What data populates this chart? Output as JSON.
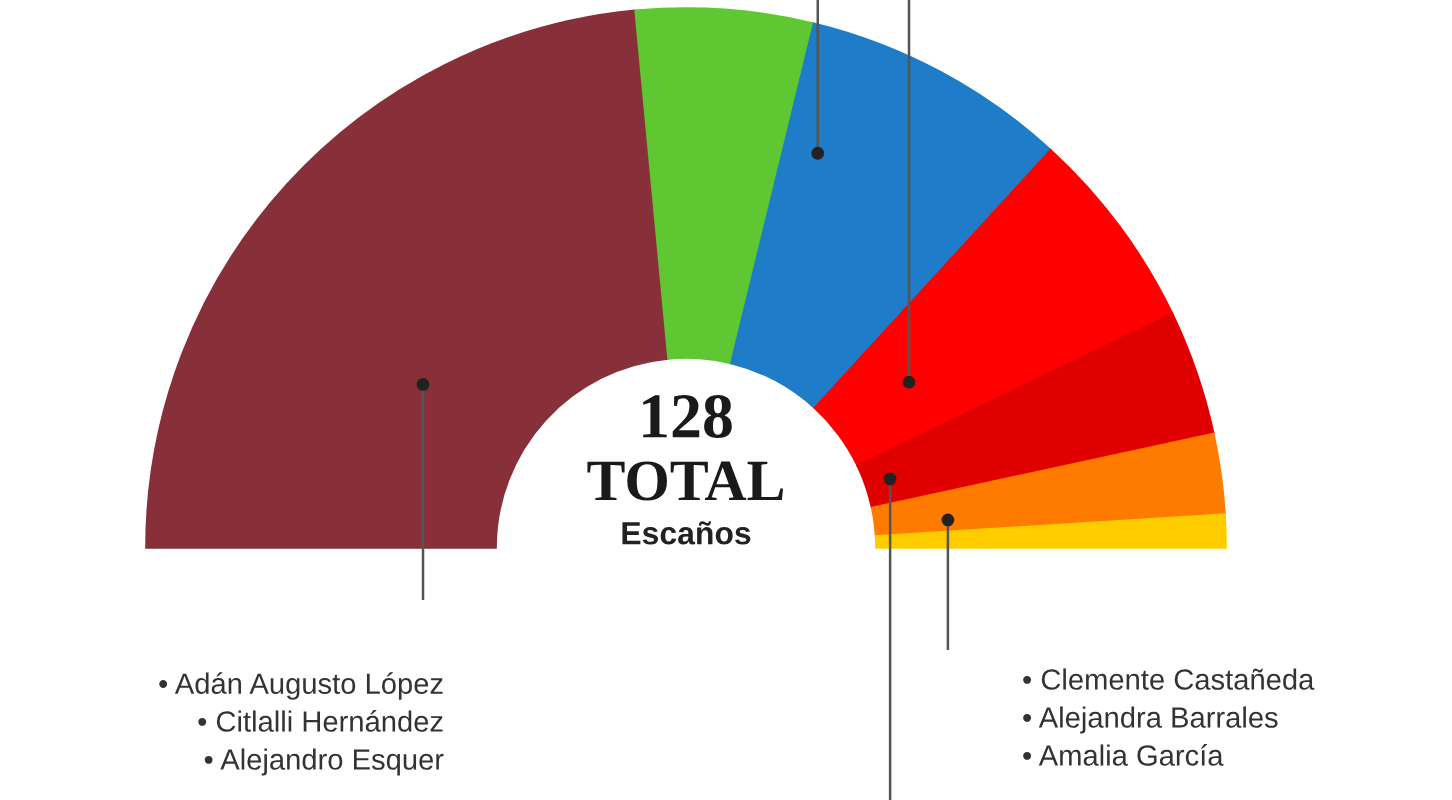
{
  "chart_data": {
    "type": "donut",
    "categories": [
      null,
      null,
      null,
      null,
      null,
      null,
      null
    ],
    "values": [
      47.0,
      10.6,
      16.0,
      12.1,
      7.5,
      4.8,
      2.0
    ],
    "colors": [
      "#87303a",
      "#5ec732",
      "#1e7cc8",
      "#ff0000",
      "#e10000",
      "#ff7b00",
      "#ffcc00"
    ],
    "annotations": [
      "128",
      "TOTAL",
      "Escaños",
      "• Adán Augusto López",
      "• Citlalli Hernández",
      "• Alejandro Esquer",
      "• Clemente Castañeda",
      "• Alejandra Barrales",
      "• Amalia García"
    ]
  }
}
